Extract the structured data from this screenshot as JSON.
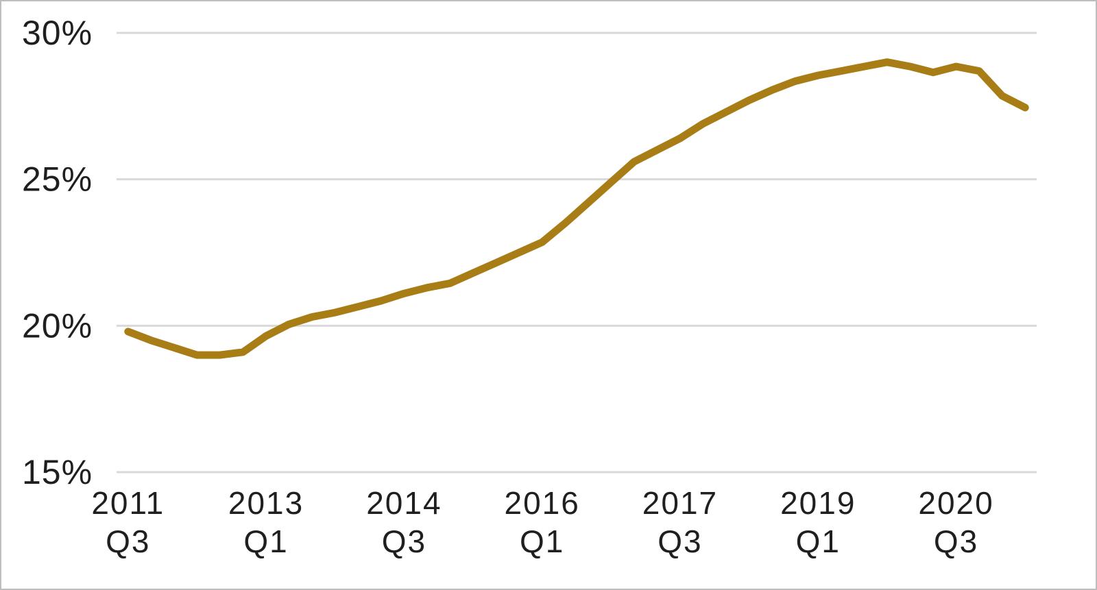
{
  "chart_data": {
    "type": "line",
    "title": "",
    "xlabel": "",
    "ylabel": "",
    "legend": "none",
    "grid": "horizontal",
    "ylim": [
      15,
      30
    ],
    "line_color": "#a87d16",
    "gridline_color": "#d9d9d9",
    "text_color": "#1f1f1f",
    "background_color": "#ffffff",
    "y_ticks": [
      {
        "value": 30,
        "label": "30%"
      },
      {
        "value": 25,
        "label": "25%"
      },
      {
        "value": 20,
        "label": "20%"
      },
      {
        "value": 15,
        "label": "15%"
      }
    ],
    "x_tick_labels": [
      {
        "index": 0,
        "year": "2011",
        "quarter": "Q3"
      },
      {
        "index": 6,
        "year": "2013",
        "quarter": "Q1"
      },
      {
        "index": 12,
        "year": "2014",
        "quarter": "Q3"
      },
      {
        "index": 18,
        "year": "2016",
        "quarter": "Q1"
      },
      {
        "index": 24,
        "year": "2017",
        "quarter": "Q3"
      },
      {
        "index": 30,
        "year": "2019",
        "quarter": "Q1"
      },
      {
        "index": 36,
        "year": "2020",
        "quarter": "Q3"
      }
    ],
    "categories": [
      "2011 Q3",
      "2011 Q4",
      "2012 Q1",
      "2012 Q2",
      "2012 Q3",
      "2012 Q4",
      "2013 Q1",
      "2013 Q2",
      "2013 Q3",
      "2013 Q4",
      "2014 Q1",
      "2014 Q2",
      "2014 Q3",
      "2014 Q4",
      "2015 Q1",
      "2015 Q2",
      "2015 Q3",
      "2015 Q4",
      "2016 Q1",
      "2016 Q2",
      "2016 Q3",
      "2016 Q4",
      "2017 Q1",
      "2017 Q2",
      "2017 Q3",
      "2017 Q4",
      "2018 Q1",
      "2018 Q2",
      "2018 Q3",
      "2018 Q4",
      "2019 Q1",
      "2019 Q2",
      "2019 Q3",
      "2019 Q4",
      "2020 Q1",
      "2020 Q2",
      "2020 Q3",
      "2020 Q4",
      "2021 Q1",
      "2021 Q2"
    ],
    "values": [
      19.8,
      19.5,
      19.25,
      19.0,
      19.0,
      19.1,
      19.65,
      20.05,
      20.3,
      20.45,
      20.65,
      20.85,
      21.1,
      21.3,
      21.45,
      21.8,
      22.15,
      22.5,
      22.85,
      23.5,
      24.2,
      24.9,
      25.6,
      26.0,
      26.4,
      26.9,
      27.3,
      27.7,
      28.05,
      28.35,
      28.55,
      28.7,
      28.85,
      29.0,
      28.85,
      28.65,
      28.85,
      28.7,
      27.85,
      27.45
    ]
  }
}
